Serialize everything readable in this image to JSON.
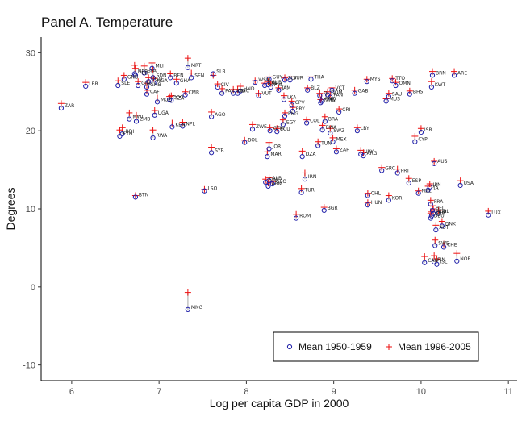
{
  "chart_data": {
    "type": "scatter",
    "title": "Panel A. Temperature",
    "xlabel": "Log per capita GDP in 2000",
    "ylabel": "Degrees",
    "xlim": [
      5.65,
      11.1
    ],
    "ylim": [
      -12,
      32
    ],
    "x_ticks": [
      6,
      7,
      8,
      9,
      10,
      11
    ],
    "y_ticks": [
      -10,
      0,
      10,
      20,
      30
    ],
    "grid": false,
    "legend_position": "bottom-right",
    "colors": {
      "mean_1950_1959": "#1f1fa8",
      "mean_1996_2005": "#ee1111",
      "segment": "#c8c8c8"
    },
    "series": [
      {
        "name": "Mean 1950-1959",
        "marker": "circle"
      },
      {
        "name": "Mean 1996-2005",
        "marker": "plus"
      }
    ],
    "points": [
      {
        "label": "ZAR",
        "x": 5.88,
        "y1": 22.9,
        "y2": 23.5
      },
      {
        "label": "LBR",
        "x": 6.16,
        "y1": 25.7,
        "y2": 26.2
      },
      {
        "label": "SLE",
        "x": 6.53,
        "y1": 25.8,
        "y2": 26.4
      },
      {
        "label": "ETH",
        "x": 6.55,
        "y1": 19.3,
        "y2": 20.1
      },
      {
        "label": "BDI",
        "x": 6.58,
        "y1": 19.6,
        "y2": 20.4
      },
      {
        "label": "GNB",
        "x": 6.6,
        "y1": 26.6,
        "y2": 27.1
      },
      {
        "label": "NER",
        "x": 6.72,
        "y1": 27.3,
        "y2": 28.4
      },
      {
        "label": "TCD",
        "x": 6.73,
        "y1": 27.1,
        "y2": 28.0
      },
      {
        "label": "MLI",
        "x": 6.92,
        "y1": 28.0,
        "y2": 28.7
      },
      {
        "label": "BFA",
        "x": 6.83,
        "y1": 27.4,
        "y2": 28.3
      },
      {
        "label": "SDN",
        "x": 6.93,
        "y1": 26.8,
        "y2": 27.9
      },
      {
        "label": "BEN",
        "x": 7.13,
        "y1": 26.8,
        "y2": 27.3
      },
      {
        "label": "GIN",
        "x": 6.76,
        "y1": 25.8,
        "y2": 26.3
      },
      {
        "label": "TGO",
        "x": 6.88,
        "y1": 26.3,
        "y2": 26.8
      },
      {
        "label": "NGA",
        "x": 6.94,
        "y1": 26.1,
        "y2": 26.7
      },
      {
        "label": "GHA",
        "x": 7.2,
        "y1": 26.1,
        "y2": 26.6
      },
      {
        "label": "GMB",
        "x": 6.86,
        "y1": 25.6,
        "y2": 26.1
      },
      {
        "label": "CAF",
        "x": 6.86,
        "y1": 24.7,
        "y2": 25.2
      },
      {
        "label": "MOZ",
        "x": 6.98,
        "y1": 23.7,
        "y2": 24.2
      },
      {
        "label": "TZA",
        "x": 7.14,
        "y1": 23.9,
        "y2": 24.5
      },
      {
        "label": "COG",
        "x": 7.12,
        "y1": 24.0,
        "y2": 24.4
      },
      {
        "label": "CMR",
        "x": 7.3,
        "y1": 24.6,
        "y2": 25.0
      },
      {
        "label": "MRT",
        "x": 7.33,
        "y1": 28.1,
        "y2": 29.3
      },
      {
        "label": "SEN",
        "x": 7.37,
        "y1": 26.8,
        "y2": 27.4
      },
      {
        "label": "UGA",
        "x": 6.95,
        "y1": 22.0,
        "y2": 22.6
      },
      {
        "label": "ZMB",
        "x": 6.74,
        "y1": 21.2,
        "y2": 22.0
      },
      {
        "label": "MWI",
        "x": 6.66,
        "y1": 21.5,
        "y2": 22.3
      },
      {
        "label": "KEN",
        "x": 7.15,
        "y1": 20.5,
        "y2": 21.0
      },
      {
        "label": "NPL",
        "x": 7.27,
        "y1": 20.6,
        "y2": 21.1
      },
      {
        "label": "RWA",
        "x": 6.93,
        "y1": 19.1,
        "y2": 20.1
      },
      {
        "label": "BTN",
        "x": 6.73,
        "y1": 11.5,
        "y2": 11.7
      },
      {
        "label": "MNG",
        "x": 7.33,
        "y1": -2.9,
        "y2": -0.7
      },
      {
        "label": "SLB",
        "x": 7.62,
        "y1": 27.3,
        "y2": 27.1
      },
      {
        "label": "CIV",
        "x": 7.67,
        "y1": 25.6,
        "y2": 26.0
      },
      {
        "label": "PAK",
        "x": 7.72,
        "y1": 24.8,
        "y2": 25.4
      },
      {
        "label": "AGO",
        "x": 7.6,
        "y1": 21.8,
        "y2": 22.4
      },
      {
        "label": "SYR",
        "x": 7.6,
        "y1": 17.2,
        "y2": 17.9
      },
      {
        "label": "LSO",
        "x": 7.52,
        "y1": 12.3,
        "y2": 12.5
      },
      {
        "label": "IND",
        "x": 7.85,
        "y1": 24.8,
        "y2": 25.3
      },
      {
        "label": "HND",
        "x": 7.93,
        "y1": 25.1,
        "y2": 25.7
      },
      {
        "label": "NIC",
        "x": 7.9,
        "y1": 24.8,
        "y2": 25.3
      },
      {
        "label": "ZWE",
        "x": 8.07,
        "y1": 20.2,
        "y2": 20.8
      },
      {
        "label": "BOL",
        "x": 7.98,
        "y1": 18.5,
        "y2": 18.8
      },
      {
        "label": "WSM",
        "x": 8.1,
        "y1": 26.2,
        "y2": 26.4
      },
      {
        "label": "CUB",
        "x": 8.25,
        "y1": 25.9,
        "y2": 26.3
      },
      {
        "label": "GUY",
        "x": 8.26,
        "y1": 26.6,
        "y2": 26.9
      },
      {
        "label": "PHL",
        "x": 8.28,
        "y1": 25.6,
        "y2": 26.1
      },
      {
        "label": "SLV",
        "x": 8.44,
        "y1": 26.5,
        "y2": 26.8
      },
      {
        "label": "SUR",
        "x": 8.5,
        "y1": 26.5,
        "y2": 26.9
      },
      {
        "label": "IDN",
        "x": 8.21,
        "y1": 25.8,
        "y2": 26.1
      },
      {
        "label": "JAM",
        "x": 8.37,
        "y1": 25.2,
        "y2": 25.5
      },
      {
        "label": "VUT",
        "x": 8.14,
        "y1": 24.5,
        "y2": 24.8
      },
      {
        "label": "LKA",
        "x": 8.43,
        "y1": 24.0,
        "y2": 24.5
      },
      {
        "label": "CPV",
        "x": 8.52,
        "y1": 23.3,
        "y2": 23.8
      },
      {
        "label": "PRY",
        "x": 8.53,
        "y1": 22.5,
        "y2": 23.0
      },
      {
        "label": "PNG",
        "x": 8.44,
        "y1": 21.9,
        "y2": 22.3
      },
      {
        "label": "EGY",
        "x": 8.42,
        "y1": 20.8,
        "y2": 21.4
      },
      {
        "label": "ECU",
        "x": 8.35,
        "y1": 19.9,
        "y2": 20.3
      },
      {
        "label": "GTM",
        "x": 8.27,
        "y1": 20.0,
        "y2": 20.4
      },
      {
        "label": "JOR",
        "x": 8.26,
        "y1": 17.7,
        "y2": 18.5
      },
      {
        "label": "MAR",
        "x": 8.24,
        "y1": 16.7,
        "y2": 17.3
      },
      {
        "label": "ALB",
        "x": 8.26,
        "y1": 13.6,
        "y2": 14.0
      },
      {
        "label": "SWL",
        "x": 8.22,
        "y1": 13.4,
        "y2": 13.8
      },
      {
        "label": "ARM",
        "x": 8.25,
        "y1": 12.9,
        "y2": 13.3
      },
      {
        "label": "GEO",
        "x": 8.3,
        "y1": 13.2,
        "y2": 13.5
      },
      {
        "label": "THA",
        "x": 8.74,
        "y1": 26.6,
        "y2": 26.9
      },
      {
        "label": "BLZ",
        "x": 8.7,
        "y1": 25.2,
        "y2": 25.5
      },
      {
        "label": "VCT",
        "x": 8.98,
        "y1": 25.2,
        "y2": 25.5
      },
      {
        "label": "DOM",
        "x": 8.93,
        "y1": 24.6,
        "y2": 25.0
      },
      {
        "label": "FJI",
        "x": 8.84,
        "y1": 24.5,
        "y2": 24.8
      },
      {
        "label": "PAN",
        "x": 8.96,
        "y1": 24.3,
        "y2": 24.7
      },
      {
        "label": "GNQ",
        "x": 8.86,
        "y1": 23.8,
        "y2": 24.2
      },
      {
        "label": "DMA",
        "x": 8.85,
        "y1": 23.6,
        "y2": 24.0
      },
      {
        "label": "COL",
        "x": 8.69,
        "y1": 21.0,
        "y2": 21.4
      },
      {
        "label": "BRA",
        "x": 8.9,
        "y1": 21.2,
        "y2": 21.8
      },
      {
        "label": "CRI",
        "x": 9.06,
        "y1": 22.4,
        "y2": 22.8
      },
      {
        "label": "BWA",
        "x": 8.87,
        "y1": 20.1,
        "y2": 20.7
      },
      {
        "label": "SWZ",
        "x": 8.96,
        "y1": 19.7,
        "y2": 20.3
      },
      {
        "label": "LBY",
        "x": 9.27,
        "y1": 20.0,
        "y2": 20.4
      },
      {
        "label": "TUN",
        "x": 8.82,
        "y1": 18.1,
        "y2": 18.6
      },
      {
        "label": "MEX",
        "x": 8.99,
        "y1": 18.6,
        "y2": 19.1
      },
      {
        "label": "ZAF",
        "x": 9.03,
        "y1": 17.3,
        "y2": 17.7
      },
      {
        "label": "DZA",
        "x": 8.64,
        "y1": 16.7,
        "y2": 17.4
      },
      {
        "label": "URY",
        "x": 9.31,
        "y1": 17.0,
        "y2": 17.5
      },
      {
        "label": "ARG",
        "x": 9.34,
        "y1": 16.8,
        "y2": 17.2
      },
      {
        "label": "IRN",
        "x": 8.67,
        "y1": 13.8,
        "y2": 14.6
      },
      {
        "label": "TUR",
        "x": 8.63,
        "y1": 12.1,
        "y2": 12.6
      },
      {
        "label": "ROM",
        "x": 8.57,
        "y1": 8.8,
        "y2": 9.3
      },
      {
        "label": "BGR",
        "x": 8.89,
        "y1": 9.8,
        "y2": 10.2
      },
      {
        "label": "CHL",
        "x": 9.39,
        "y1": 11.7,
        "y2": 12.0
      },
      {
        "label": "HUN",
        "x": 9.39,
        "y1": 10.5,
        "y2": 10.8
      },
      {
        "label": "MYS",
        "x": 9.38,
        "y1": 26.3,
        "y2": 26.6
      },
      {
        "label": "GAB",
        "x": 9.24,
        "y1": 24.8,
        "y2": 25.2
      },
      {
        "label": "TTO",
        "x": 9.67,
        "y1": 26.4,
        "y2": 26.7
      },
      {
        "label": "OMN",
        "x": 9.71,
        "y1": 25.8,
        "y2": 26.2
      },
      {
        "label": "SAU",
        "x": 9.63,
        "y1": 24.4,
        "y2": 24.8
      },
      {
        "label": "MUS",
        "x": 9.6,
        "y1": 23.8,
        "y2": 24.1
      },
      {
        "label": "BHS",
        "x": 9.87,
        "y1": 24.7,
        "y2": 25.1
      },
      {
        "label": "GRC",
        "x": 9.55,
        "y1": 14.9,
        "y2": 15.3
      },
      {
        "label": "PRT",
        "x": 9.73,
        "y1": 14.6,
        "y2": 15.1
      },
      {
        "label": "KOR",
        "x": 9.63,
        "y1": 11.1,
        "y2": 11.7
      },
      {
        "label": "ESP",
        "x": 9.86,
        "y1": 13.3,
        "y2": 13.9
      },
      {
        "label": "ISR",
        "x": 10.0,
        "y1": 19.8,
        "y2": 20.3
      },
      {
        "label": "CYP",
        "x": 9.93,
        "y1": 18.6,
        "y2": 19.3
      },
      {
        "label": "BRN",
        "x": 10.13,
        "y1": 27.1,
        "y2": 27.6
      },
      {
        "label": "KWT",
        "x": 10.12,
        "y1": 25.6,
        "y2": 26.3
      },
      {
        "label": "ARE",
        "x": 10.38,
        "y1": 27.1,
        "y2": 27.6
      },
      {
        "label": "AUS",
        "x": 10.15,
        "y1": 15.8,
        "y2": 16.1
      },
      {
        "label": "USA",
        "x": 10.45,
        "y1": 13.0,
        "y2": 13.6
      },
      {
        "label": "JPN",
        "x": 10.1,
        "y1": 12.8,
        "y2": 13.2
      },
      {
        "label": "NZL",
        "x": 9.97,
        "y1": 12.0,
        "y2": 12.3
      },
      {
        "label": "ITA",
        "x": 10.08,
        "y1": 12.4,
        "y2": 12.9
      },
      {
        "label": "FRA",
        "x": 10.11,
        "y1": 10.6,
        "y2": 11.1
      },
      {
        "label": "BEL",
        "x": 10.13,
        "y1": 9.8,
        "y2": 10.4
      },
      {
        "label": "NLD",
        "x": 10.14,
        "y1": 9.4,
        "y2": 10.0
      },
      {
        "label": "GBR",
        "x": 10.12,
        "y1": 9.1,
        "y2": 9.6
      },
      {
        "label": "DEU",
        "x": 10.11,
        "y1": 8.8,
        "y2": 9.4
      },
      {
        "label": "AUT",
        "x": 10.17,
        "y1": 7.3,
        "y2": 7.9
      },
      {
        "label": "DNK",
        "x": 10.24,
        "y1": 7.8,
        "y2": 8.4
      },
      {
        "label": "IRL",
        "x": 10.2,
        "y1": 9.4,
        "y2": 9.8
      },
      {
        "label": "SWE",
        "x": 10.16,
        "y1": 5.3,
        "y2": 6.0
      },
      {
        "label": "CHE",
        "x": 10.26,
        "y1": 5.1,
        "y2": 5.5
      },
      {
        "label": "FIN",
        "x": 10.15,
        "y1": 3.2,
        "y2": 4.0
      },
      {
        "label": "CAN",
        "x": 10.04,
        "y1": 3.1,
        "y2": 3.9
      },
      {
        "label": "ISL",
        "x": 10.18,
        "y1": 2.9,
        "y2": 3.6
      },
      {
        "label": "NOR",
        "x": 10.41,
        "y1": 3.3,
        "y2": 4.3
      },
      {
        "label": "LUX",
        "x": 10.77,
        "y1": 9.2,
        "y2": 9.7
      }
    ]
  }
}
